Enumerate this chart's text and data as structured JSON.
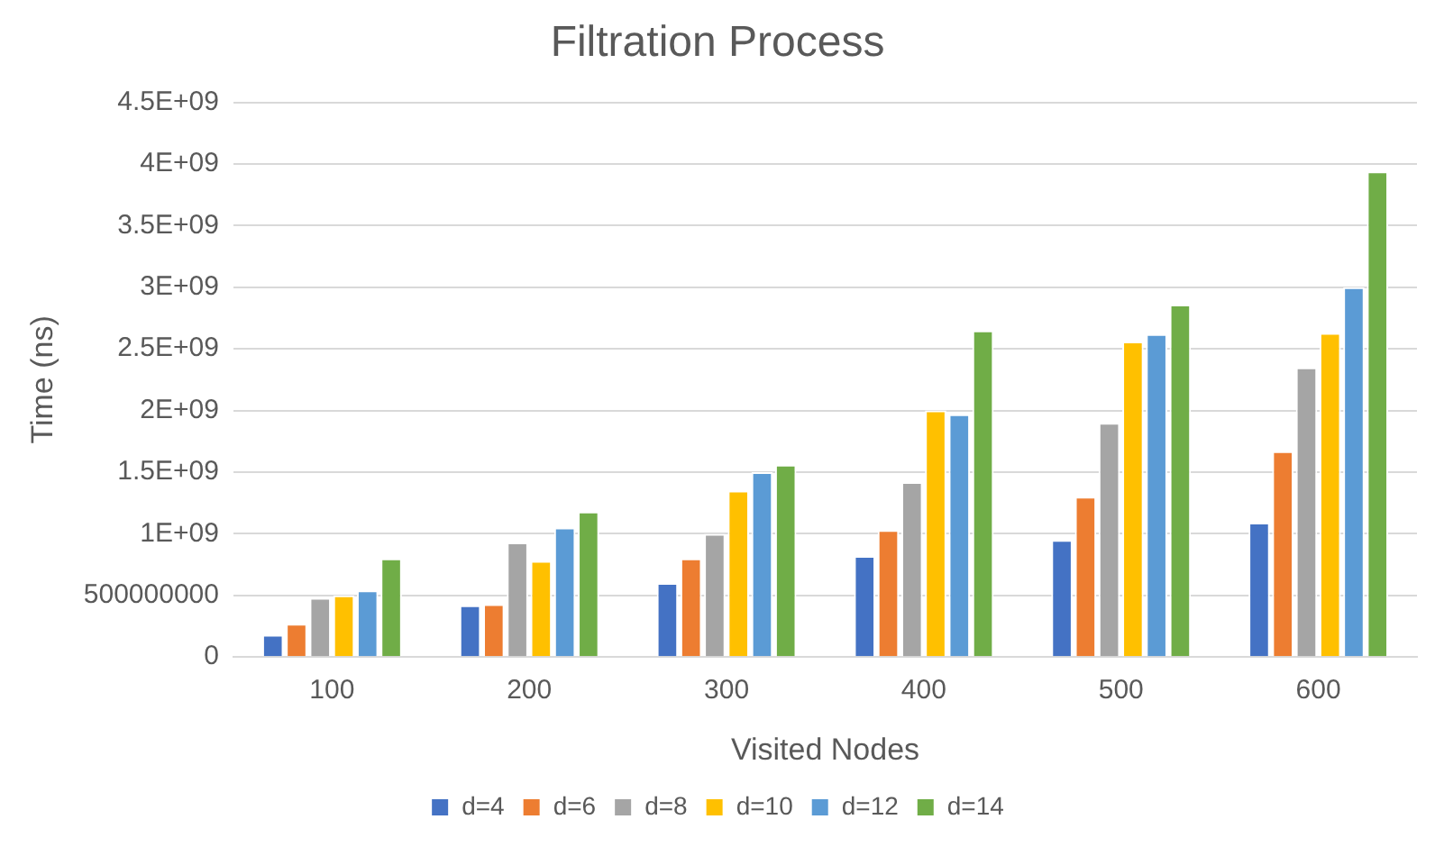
{
  "chart_data": {
    "type": "bar",
    "title": "Filtration Process",
    "xlabel": "Visited Nodes",
    "ylabel": "Time (ns)",
    "categories": [
      "100",
      "200",
      "300",
      "400",
      "500",
      "600"
    ],
    "series": [
      {
        "name": "d=4",
        "color": "#4472c4",
        "values": [
          180000000,
          420000000,
          600000000,
          820000000,
          950000000,
          1090000000
        ]
      },
      {
        "name": "d=6",
        "color": "#ed7d31",
        "values": [
          270000000,
          430000000,
          800000000,
          1030000000,
          1300000000,
          1670000000
        ]
      },
      {
        "name": "d=8",
        "color": "#a5a5a5",
        "values": [
          480000000,
          930000000,
          1000000000,
          1420000000,
          1900000000,
          2350000000
        ]
      },
      {
        "name": "d=10",
        "color": "#ffc000",
        "values": [
          500000000,
          780000000,
          1350000000,
          2000000000,
          2560000000,
          2630000000
        ]
      },
      {
        "name": "d=12",
        "color": "#5b9bd5",
        "values": [
          540000000,
          1050000000,
          1500000000,
          1970000000,
          2620000000,
          3000000000
        ]
      },
      {
        "name": "d=14",
        "color": "#70ad47",
        "values": [
          800000000,
          1180000000,
          1560000000,
          2650000000,
          2860000000,
          3940000000
        ]
      }
    ],
    "ylim": [
      0,
      4500000000
    ],
    "yticks": [
      0,
      500000000,
      {
        "value": 1000000000,
        "label": "1E+09"
      },
      {
        "value": 1500000000,
        "label": "1.5E+09"
      },
      {
        "value": 2000000000,
        "label": "2E+09"
      },
      {
        "value": 2500000000,
        "label": "2.5E+09"
      },
      {
        "value": 3000000000,
        "label": "3E+09"
      },
      {
        "value": 3500000000,
        "label": "3.5E+09"
      },
      {
        "value": 4000000000,
        "label": "4E+09"
      },
      {
        "value": 4500000000,
        "label": "4.5E+09"
      }
    ],
    "grid": "y",
    "legend": "bottom"
  }
}
